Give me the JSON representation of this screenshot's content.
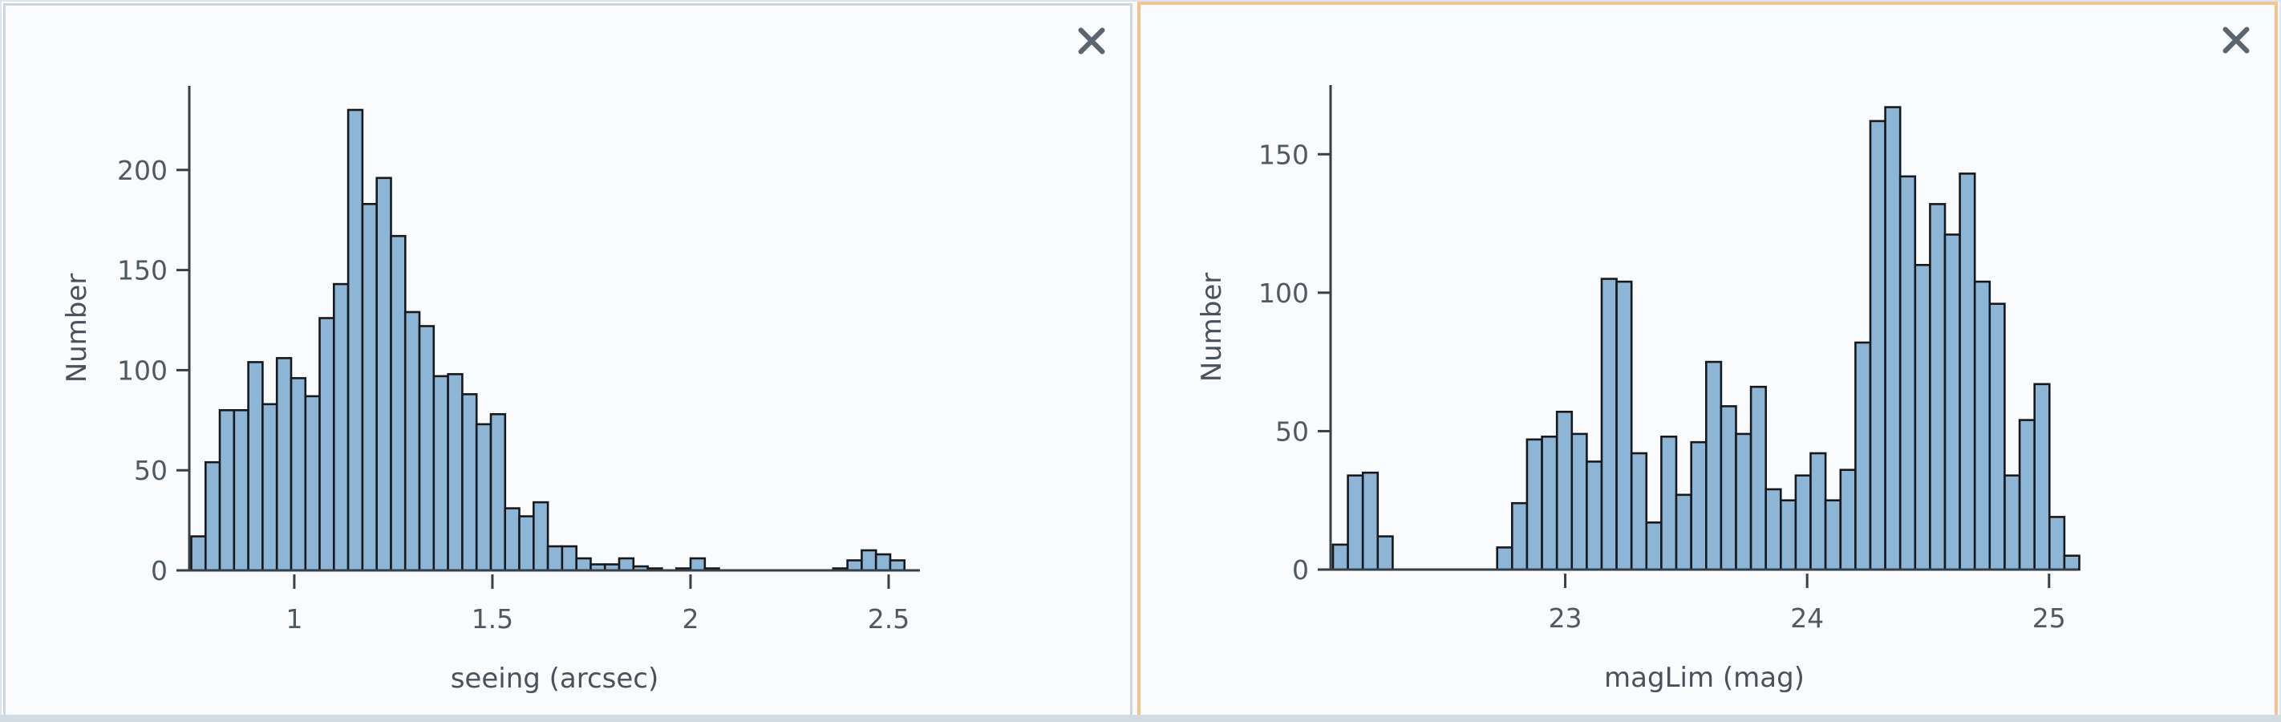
{
  "page": {
    "background": "#fbfcfd",
    "frame_color": "#dfe5ec",
    "bottom_strip_color": "#d2dbe4"
  },
  "icons": {
    "close": "×"
  },
  "panels": [
    {
      "id": "seeing-panel",
      "selected": false,
      "border_color": "#ccd6df",
      "background": "#fafbfd"
    },
    {
      "id": "maglim-panel",
      "selected": true,
      "border_color": "#f3c48e",
      "background": "#fafbfd"
    }
  ],
  "chart_data": [
    {
      "type": "bar",
      "subtype": "histogram",
      "title": "",
      "xlabel": "seeing (arcsec)",
      "ylabel": "Number",
      "legend": "none",
      "grid": false,
      "bar_fill": "#8cb5d6",
      "bar_stroke": "#16191d",
      "bin_start": 0.74,
      "bin_width": 0.036,
      "xlim": [
        0.735,
        2.579
      ],
      "ylim": [
        0,
        242
      ],
      "xticks": [
        1,
        1.5,
        2,
        2.5
      ],
      "yticks": [
        0,
        50,
        100,
        150,
        200
      ],
      "values": [
        17,
        54,
        80,
        80,
        104,
        83,
        106,
        96,
        87,
        126,
        143,
        230,
        183,
        196,
        167,
        129,
        122,
        97,
        98,
        88,
        73,
        78,
        31,
        27,
        34,
        12,
        12,
        6,
        3,
        3,
        6,
        2,
        1,
        0,
        1,
        6,
        1,
        0,
        0,
        0,
        0,
        0,
        0,
        0,
        0,
        1,
        5,
        10,
        8,
        5
      ]
    },
    {
      "type": "bar",
      "subtype": "histogram",
      "title": "",
      "xlabel": "magLim (mag)",
      "ylabel": "Number",
      "legend": "none",
      "grid": false,
      "bar_fill": "#8cb5d6",
      "bar_stroke": "#16191d",
      "bin_start": 22.04,
      "bin_width": 0.0617,
      "xlim": [
        22.03,
        25.12
      ],
      "ylim": [
        0,
        175
      ],
      "xticks": [
        23,
        24,
        25
      ],
      "yticks": [
        0,
        50,
        100,
        150
      ],
      "values": [
        9,
        34,
        35,
        12,
        0,
        0,
        0,
        0,
        0,
        0,
        0,
        8,
        24,
        47,
        48,
        57,
        49,
        39,
        105,
        104,
        42,
        17,
        48,
        27,
        46,
        75,
        59,
        49,
        66,
        29,
        25,
        34,
        42,
        25,
        36,
        82,
        162,
        167,
        142,
        110,
        132,
        121,
        143,
        104,
        96,
        34,
        54,
        67,
        19,
        5
      ]
    }
  ]
}
